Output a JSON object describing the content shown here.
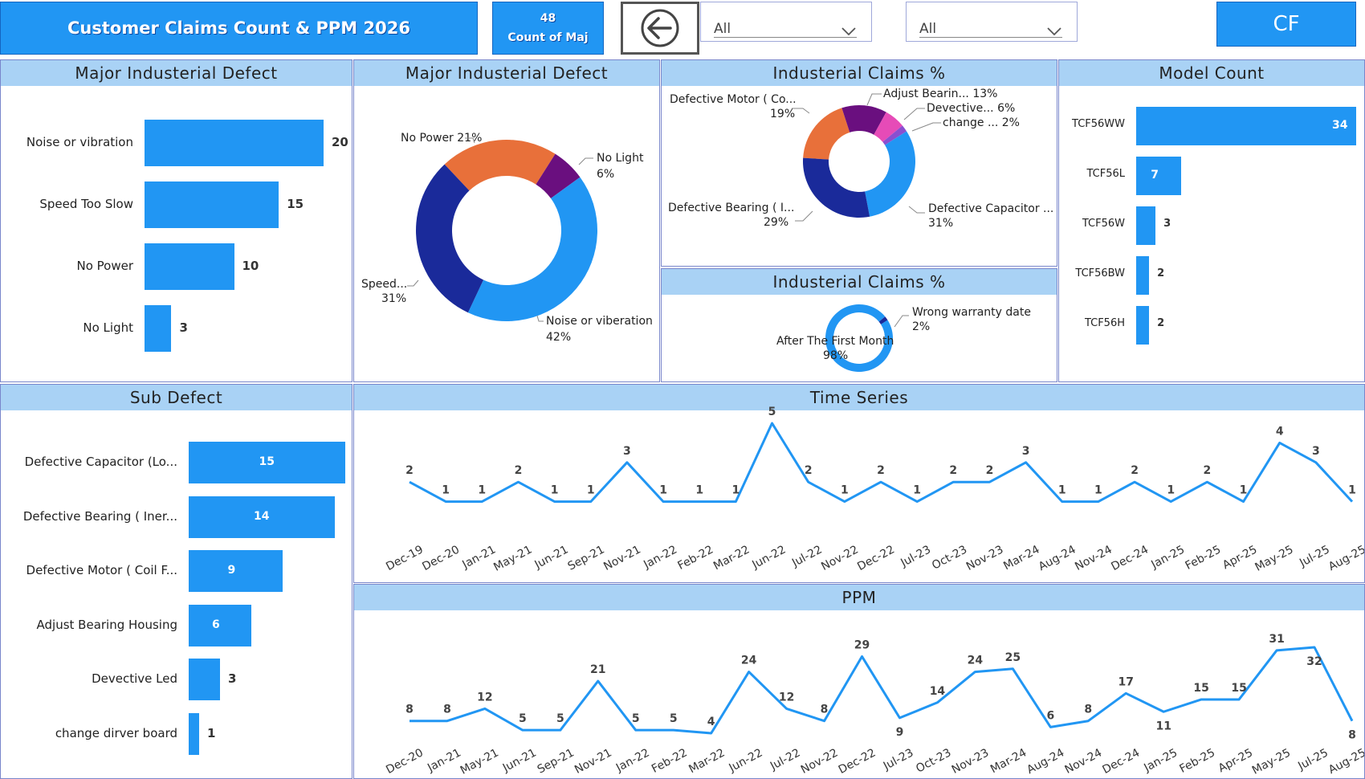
{
  "header": {
    "title": "Customer Claims Count & PPM 2026",
    "card_value": "48",
    "card_label": "Count of Maj",
    "slicer1": "All",
    "slicer2": "All",
    "cf_label": "CF"
  },
  "colors": {
    "primary": "#2196f3",
    "dark_blue": "#1a2a9a",
    "orange": "#e8703a",
    "purple": "#6a0f7f",
    "pink": "#e64bb7",
    "violet": "#8a4fd0",
    "header_bg": "#a9d2f5"
  },
  "major_defect_bar": {
    "title": "Major Industerial Defect",
    "items": [
      {
        "label": "Noise or vibration",
        "value": "20"
      },
      {
        "label": "Speed Too Slow",
        "value": "15"
      },
      {
        "label": "No Power",
        "value": "10"
      },
      {
        "label": "No Light",
        "value": "3"
      }
    ]
  },
  "major_defect_donut": {
    "title": "Major Industerial Defect",
    "labels": [
      {
        "name": "No Power",
        "pct": "21%"
      },
      {
        "name": "No Light",
        "pct": "6%"
      },
      {
        "name": "Noise or viberation",
        "pct": "42%"
      },
      {
        "name": "Speed...",
        "pct": "31%"
      }
    ]
  },
  "claims_donut": {
    "title": "Industerial Claims %",
    "labels": [
      {
        "name": "Defective Motor ( Co...",
        "pct": "19%"
      },
      {
        "name": "Adjust Bearin...",
        "pct": "13%"
      },
      {
        "name": "Devective...",
        "pct": "6%"
      },
      {
        "name": "change ...",
        "pct": "2%"
      },
      {
        "name": "Defective Bearing ( I...",
        "pct": "29%"
      },
      {
        "name": "Defective Capacitor ...",
        "pct": "31%"
      }
    ]
  },
  "claims_donut2": {
    "title": "Industerial Claims %",
    "labels": [
      {
        "name": "Wrong warranty date",
        "pct": "2%"
      },
      {
        "name": "After The First Month",
        "pct": "98%"
      }
    ]
  },
  "model_count": {
    "title": "Model Count",
    "items": [
      {
        "label": "TCF56WW",
        "value": "34"
      },
      {
        "label": "TCF56L",
        "value": "7"
      },
      {
        "label": "TCF56W",
        "value": "3"
      },
      {
        "label": "TCF56BW",
        "value": "2"
      },
      {
        "label": "TCF56H",
        "value": "2"
      }
    ]
  },
  "sub_defect": {
    "title": "Sub Defect",
    "items": [
      {
        "label": "Defective Capacitor (Lo...",
        "value": "15"
      },
      {
        "label": "Defective Bearing ( Iner...",
        "value": "14"
      },
      {
        "label": "Defective Motor ( Coil F...",
        "value": "9"
      },
      {
        "label": "Adjust Bearing Housing",
        "value": "6"
      },
      {
        "label": "Devective Led",
        "value": "3"
      },
      {
        "label": "change dirver board",
        "value": "1"
      }
    ]
  },
  "time_series": {
    "title": "Time Series",
    "x_labels": [
      "Dec-19",
      "Dec-20",
      "Jan-21",
      "May-21",
      "Jun-21",
      "Sep-21",
      "Nov-21",
      "Jan-22",
      "Feb-22",
      "Mar-22",
      "Jun-22",
      "Jul-22",
      "Nov-22",
      "Dec-22",
      "Jul-23",
      "Oct-23",
      "Nov-23",
      "Mar-24",
      "Aug-24",
      "Nov-24",
      "Dec-24",
      "Jan-25",
      "Feb-25",
      "Apr-25",
      "May-25",
      "Jul-25",
      "Aug-25"
    ]
  },
  "ppm": {
    "title": "PPM",
    "x_labels": [
      "Dec-20",
      "Jan-21",
      "May-21",
      "Jun-21",
      "Sep-21",
      "Nov-21",
      "Jan-22",
      "Feb-22",
      "Mar-22",
      "Jun-22",
      "Jul-22",
      "Nov-22",
      "Dec-22",
      "Jul-23",
      "Oct-23",
      "Nov-23",
      "Mar-24",
      "Aug-24",
      "Nov-24",
      "Dec-24",
      "Jan-25",
      "Feb-25",
      "Apr-25",
      "May-25",
      "Jul-25",
      "Aug-25"
    ]
  },
  "chart_data": [
    {
      "type": "bar",
      "title": "Major Industerial Defect",
      "categories": [
        "Noise or vibration",
        "Speed Too Slow",
        "No Power",
        "No Light"
      ],
      "values": [
        20,
        15,
        10,
        3
      ]
    },
    {
      "type": "pie",
      "title": "Major Industerial Defect",
      "categories": [
        "Noise or viberation",
        "Speed...",
        "No Power",
        "No Light"
      ],
      "values": [
        42,
        31,
        21,
        6
      ]
    },
    {
      "type": "pie",
      "title": "Industerial Claims %",
      "categories": [
        "Defective Capacitor ...",
        "Defective Bearing ( I...",
        "Defective Motor ( Co...",
        "Adjust Bearin...",
        "Devective...",
        "change ..."
      ],
      "values": [
        31,
        29,
        19,
        13,
        6,
        2
      ]
    },
    {
      "type": "pie",
      "title": "Industerial Claims %",
      "categories": [
        "After The First Month",
        "Wrong warranty date"
      ],
      "values": [
        98,
        2
      ]
    },
    {
      "type": "bar",
      "title": "Model Count",
      "categories": [
        "TCF56WW",
        "TCF56L",
        "TCF56W",
        "TCF56BW",
        "TCF56H"
      ],
      "values": [
        34,
        7,
        3,
        2,
        2
      ]
    },
    {
      "type": "bar",
      "title": "Sub Defect",
      "categories": [
        "Defective Capacitor (Lo...",
        "Defective Bearing ( Iner...",
        "Defective Motor ( Coil F...",
        "Adjust Bearing Housing",
        "Devective Led",
        "change dirver board"
      ],
      "values": [
        15,
        14,
        9,
        6,
        3,
        1
      ]
    },
    {
      "type": "line",
      "title": "Time Series",
      "x": [
        "Dec-19",
        "Dec-20",
        "Jan-21",
        "May-21",
        "Jun-21",
        "Sep-21",
        "Nov-21",
        "Jan-22",
        "Feb-22",
        "Mar-22",
        "Jun-22",
        "Jul-22",
        "Nov-22",
        "Dec-22",
        "Jul-23",
        "Oct-23",
        "Nov-23",
        "Mar-24",
        "Aug-24",
        "Nov-24",
        "Dec-24",
        "Jan-25",
        "Feb-25",
        "Apr-25",
        "May-25",
        "Jul-25",
        "Aug-25"
      ],
      "values": [
        2,
        1,
        1,
        2,
        1,
        1,
        3,
        1,
        1,
        1,
        5,
        2,
        1,
        2,
        1,
        2,
        2,
        3,
        1,
        1,
        2,
        1,
        2,
        1,
        4,
        3,
        1
      ]
    },
    {
      "type": "line",
      "title": "PPM",
      "x": [
        "Dec-20",
        "Jan-21",
        "May-21",
        "Jun-21",
        "Sep-21",
        "Nov-21",
        "Jan-22",
        "Feb-22",
        "Mar-22",
        "Jun-22",
        "Jul-22",
        "Nov-22",
        "Dec-22",
        "Jul-23",
        "Oct-23",
        "Nov-23",
        "Mar-24",
        "Aug-24",
        "Nov-24",
        "Dec-24",
        "Jan-25",
        "Feb-25",
        "Apr-25",
        "May-25",
        "Jul-25",
        "Aug-25"
      ],
      "values": [
        8,
        8,
        12,
        5,
        5,
        21,
        5,
        5,
        4,
        24,
        12,
        8,
        29,
        9,
        14,
        24,
        25,
        6,
        8,
        17,
        11,
        15,
        15,
        31,
        32,
        8
      ]
    }
  ]
}
